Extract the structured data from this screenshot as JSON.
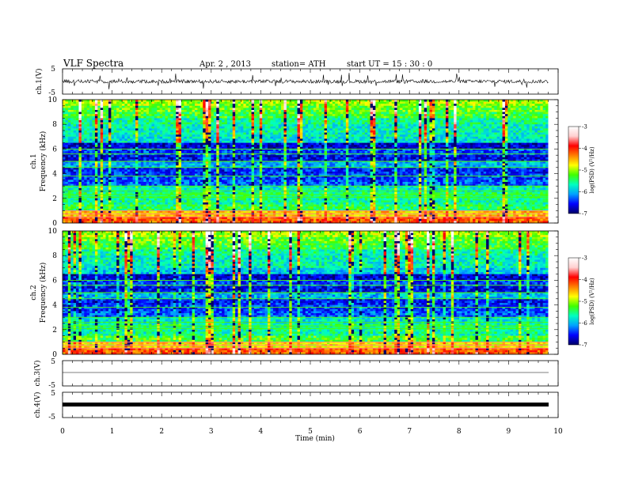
{
  "header": {
    "title": "VLF  Spectra",
    "date": "Apr. 2  , 2013",
    "station": "station= ATH",
    "start": "start  UT  =    15 : 30 : 0"
  },
  "x_axis": {
    "label": "Time  (min)",
    "ticks": [
      "0",
      "1",
      "2",
      "3",
      "4",
      "5",
      "6",
      "7",
      "8",
      "9",
      "10"
    ],
    "range": [
      0,
      10
    ],
    "data_end_min": 9.8
  },
  "panels": {
    "ch1": {
      "label": "ch.1(V)",
      "ticks": [
        "5",
        "-5"
      ]
    },
    "spec1": {
      "label": "ch.1",
      "sublabel": "Frequency  (kHz)",
      "ticks": [
        "0",
        "2",
        "4",
        "6",
        "8",
        "10"
      ]
    },
    "spec2": {
      "label": "ch.2",
      "sublabel": "Frequency  (kHz)",
      "ticks": [
        "0",
        "2",
        "4",
        "6",
        "8",
        "10"
      ]
    },
    "ch3": {
      "label": "ch.3(V)",
      "ticks": [
        "5",
        "-5"
      ]
    },
    "ch4": {
      "label": "ch.4(V)",
      "ticks": [
        "5",
        "-5"
      ]
    }
  },
  "colorbar": {
    "label": "log(PSD) (V²/Hz)",
    "ticks": [
      "-3",
      "-4",
      "-5",
      "-6",
      "-7"
    ],
    "range": [
      -7,
      -3
    ],
    "colors": [
      "#000066",
      "#0000ff",
      "#00a0ff",
      "#00ffc0",
      "#40ff00",
      "#ffff00",
      "#ff8000",
      "#ff0000",
      "#ffd0d0",
      "#ffffff"
    ]
  },
  "chart_data": {
    "type": "heatmap",
    "title": "VLF  Spectra",
    "xlabel": "Time  (min)",
    "ylabel": "Frequency  (kHz)",
    "xlim": [
      0,
      10
    ],
    "ylim": [
      0,
      10
    ],
    "zlabel": "log(PSD) (V²/Hz)",
    "zlim": [
      -7,
      -3
    ],
    "freq_bands_khz": [
      0.25,
      0.75,
      1.25,
      1.75,
      2.25,
      2.75,
      3.25,
      3.75,
      4.25,
      4.75,
      5.25,
      5.75,
      6.25,
      6.75,
      7.25,
      7.75,
      8.25,
      8.75,
      9.25,
      9.75
    ],
    "series": [
      {
        "name": "ch.1",
        "band_median_logpsd": [
          -4.2,
          -4.6,
          -5.4,
          -5.6,
          -5.5,
          -5.7,
          -6.3,
          -6.4,
          -6.5,
          -6.0,
          -6.6,
          -6.4,
          -6.7,
          -5.8,
          -5.7,
          -5.7,
          -5.6,
          -5.3,
          -5.2,
          -5.0
        ]
      },
      {
        "name": "ch.2",
        "band_median_logpsd": [
          -4.2,
          -4.7,
          -5.3,
          -5.6,
          -5.6,
          -5.8,
          -6.3,
          -6.4,
          -6.5,
          -6.0,
          -6.6,
          -6.4,
          -6.7,
          -5.9,
          -5.7,
          -5.7,
          -5.6,
          -5.3,
          -5.2,
          -5.0
        ]
      }
    ],
    "waveforms": [
      {
        "name": "ch.1(V)",
        "ylim": [
          -5,
          5
        ],
        "baseline": 0
      },
      {
        "name": "ch.3(V)",
        "ylim": [
          -5,
          5
        ],
        "baseline": 0
      },
      {
        "name": "ch.4(V)",
        "ylim": [
          -5,
          5
        ],
        "baseline": 0
      }
    ]
  }
}
